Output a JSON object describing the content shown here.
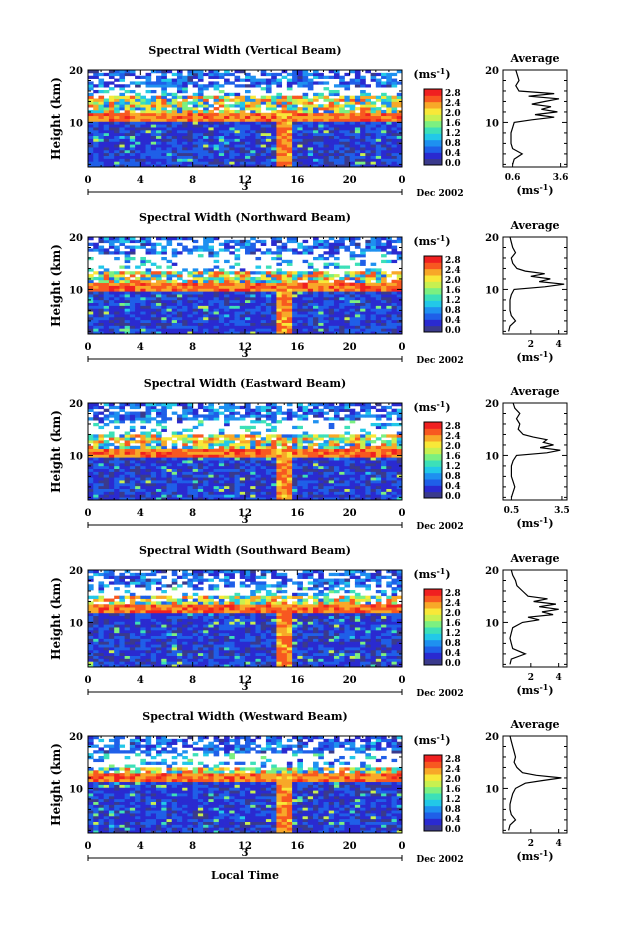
{
  "figure": {
    "x_axis_label": "Local Time",
    "date_label": "Dec 2002",
    "day_label": "3",
    "height_axis_label": "Height (km)",
    "colorbar_unit": "(ms",
    "colorbar_unit_exp": "-1",
    "colorbar_unit_close": ")",
    "average_title": "Average",
    "average_unit": "(ms",
    "average_unit_exp": "-1",
    "average_unit_close": ")"
  },
  "colorbar": {
    "ticks": [
      "0.0",
      "0.4",
      "0.8",
      "1.2",
      "1.6",
      "2.0",
      "2.4",
      "2.8"
    ],
    "colors": [
      "#3a3a8c",
      "#2a2ad0",
      "#1f5fe8",
      "#1e90f0",
      "#22c8e8",
      "#3ce0b8",
      "#7cf080",
      "#c8f050",
      "#f8e838",
      "#f8a828",
      "#f85820",
      "#f02020"
    ]
  },
  "chart_data": [
    {
      "type": "heatmap",
      "title": "Spectral Width (Vertical Beam)",
      "xlabel": "Local Time",
      "ylabel": "Height (km)",
      "x_ticks": [
        "0",
        "4",
        "8",
        "12",
        "16",
        "20",
        "0"
      ],
      "y_ticks": [
        "10",
        "20"
      ],
      "xlim": [
        0,
        24
      ],
      "ylim": [
        1.5,
        20
      ],
      "colorbar_range": [
        0.0,
        2.8
      ],
      "tropopause_km": 11.0,
      "upper_gap_km": [
        15.0,
        17.0
      ],
      "convection_hour": 15.0,
      "average_profile": {
        "xlabel": "(ms-1)",
        "x_ticks": [
          "0.6",
          "3.6"
        ],
        "xlim": [
          0,
          4.0
        ],
        "heights": [
          2,
          3,
          4,
          5,
          6,
          7,
          8,
          9,
          10,
          10.5,
          11,
          11.5,
          12,
          12.5,
          13,
          13.5,
          14,
          14.5,
          15,
          15.5,
          16,
          17,
          18,
          19,
          20
        ],
        "values": [
          0.6,
          0.7,
          1.2,
          0.6,
          0.5,
          0.5,
          0.5,
          0.6,
          0.7,
          1.8,
          3.2,
          2.0,
          3.4,
          2.4,
          3.0,
          1.8,
          2.6,
          3.5,
          1.6,
          3.2,
          1.0,
          0.8,
          1.0,
          0.9,
          0.8
        ]
      }
    },
    {
      "type": "heatmap",
      "title": "Spectral Width (Northward Beam)",
      "xlabel": "Local Time",
      "ylabel": "Height (km)",
      "x_ticks": [
        "0",
        "4",
        "8",
        "12",
        "16",
        "20",
        "0"
      ],
      "y_ticks": [
        "10",
        "20"
      ],
      "xlim": [
        0,
        24
      ],
      "ylim": [
        1.5,
        20
      ],
      "colorbar_range": [
        0.0,
        2.8
      ],
      "tropopause_km": 10.5,
      "upper_gap_km": [
        13.5,
        17.0
      ],
      "convection_hour": 15.0,
      "average_profile": {
        "xlabel": "(ms-1)",
        "x_ticks": [
          "2",
          "4"
        ],
        "xlim": [
          0,
          4.6
        ],
        "heights": [
          2,
          3,
          4,
          5,
          6,
          7,
          8,
          9,
          10,
          10.5,
          11,
          11.5,
          12,
          12.5,
          13,
          13.5,
          14,
          15,
          16,
          17,
          18,
          19,
          20
        ],
        "values": [
          0.4,
          0.5,
          0.9,
          0.6,
          0.5,
          0.5,
          0.5,
          0.6,
          0.8,
          3.0,
          4.4,
          2.6,
          3.4,
          2.0,
          3.0,
          1.6,
          1.0,
          0.7,
          0.6,
          0.9,
          0.7,
          0.6,
          0.5
        ]
      }
    },
    {
      "type": "heatmap",
      "title": "Spectral Width (Eastward Beam)",
      "xlabel": "Local Time",
      "ylabel": "Height (km)",
      "x_ticks": [
        "0",
        "4",
        "8",
        "12",
        "16",
        "20",
        "0"
      ],
      "y_ticks": [
        "10",
        "20"
      ],
      "xlim": [
        0,
        24
      ],
      "ylim": [
        1.5,
        20
      ],
      "colorbar_range": [
        0.0,
        2.8
      ],
      "tropopause_km": 10.5,
      "upper_gap_km": [
        14.0,
        17.0
      ],
      "convection_hour": 15.0,
      "average_profile": {
        "xlabel": "(ms-1)",
        "x_ticks": [
          "0.5",
          "3.5"
        ],
        "xlim": [
          0,
          3.8
        ],
        "heights": [
          2,
          3,
          4,
          5,
          6,
          7,
          8,
          9,
          10,
          10.5,
          11,
          11.5,
          12,
          12.5,
          13,
          13.5,
          14,
          15,
          16,
          17,
          18,
          19,
          20
        ],
        "values": [
          0.5,
          0.6,
          0.7,
          0.6,
          0.5,
          0.5,
          0.5,
          0.6,
          0.8,
          2.6,
          3.4,
          2.2,
          3.0,
          2.4,
          2.6,
          1.8,
          1.2,
          0.9,
          1.0,
          0.8,
          1.0,
          0.7,
          0.6
        ]
      }
    },
    {
      "type": "heatmap",
      "title": "Spectral Width (Southward Beam)",
      "xlabel": "Local Time",
      "ylabel": "Height (km)",
      "x_ticks": [
        "0",
        "4",
        "8",
        "12",
        "16",
        "20",
        "0"
      ],
      "y_ticks": [
        "10",
        "20"
      ],
      "xlim": [
        0,
        24
      ],
      "ylim": [
        1.5,
        20
      ],
      "colorbar_range": [
        0.0,
        2.8
      ],
      "tropopause_km": 12.5,
      "upper_gap_km": [
        15.0,
        17.0
      ],
      "convection_hour": 15.0,
      "average_profile": {
        "xlabel": "(ms-1)",
        "x_ticks": [
          "2",
          "4"
        ],
        "xlim": [
          0,
          4.6
        ],
        "heights": [
          2,
          3,
          4,
          5,
          6,
          7,
          8,
          9,
          10,
          10.5,
          11,
          11.5,
          12,
          12.5,
          13,
          13.5,
          14,
          14.5,
          15,
          16,
          17,
          18,
          19,
          20
        ],
        "values": [
          0.5,
          0.6,
          1.6,
          0.7,
          0.6,
          0.5,
          0.6,
          0.7,
          1.4,
          2.6,
          1.8,
          3.6,
          2.8,
          4.0,
          2.6,
          3.8,
          2.2,
          3.2,
          1.8,
          1.4,
          1.0,
          0.9,
          0.7,
          0.6
        ]
      }
    },
    {
      "type": "heatmap",
      "title": "Spectral Width (Westward Beam)",
      "xlabel": "Local Time",
      "ylabel": "Height (km)",
      "x_ticks": [
        "0",
        "4",
        "8",
        "12",
        "16",
        "20",
        "0"
      ],
      "y_ticks": [
        "10",
        "20"
      ],
      "xlim": [
        0,
        24
      ],
      "ylim": [
        1.5,
        20
      ],
      "colorbar_range": [
        0.0,
        2.8
      ],
      "tropopause_km": 12.0,
      "upper_gap_km": [
        14.0,
        17.0
      ],
      "convection_hour": 15.0,
      "average_profile": {
        "xlabel": "(ms-1)",
        "x_ticks": [
          "2",
          "4"
        ],
        "xlim": [
          0,
          4.6
        ],
        "heights": [
          2,
          3,
          4,
          5,
          6,
          7,
          8,
          9,
          10,
          11,
          11.5,
          12,
          12.5,
          13,
          14,
          15,
          16,
          17,
          18,
          19,
          20
        ],
        "values": [
          0.4,
          0.5,
          0.9,
          0.6,
          0.5,
          0.5,
          0.6,
          0.7,
          0.9,
          1.6,
          2.8,
          4.2,
          2.4,
          1.4,
          1.0,
          0.8,
          0.9,
          0.8,
          0.7,
          0.6,
          0.5
        ]
      }
    }
  ]
}
